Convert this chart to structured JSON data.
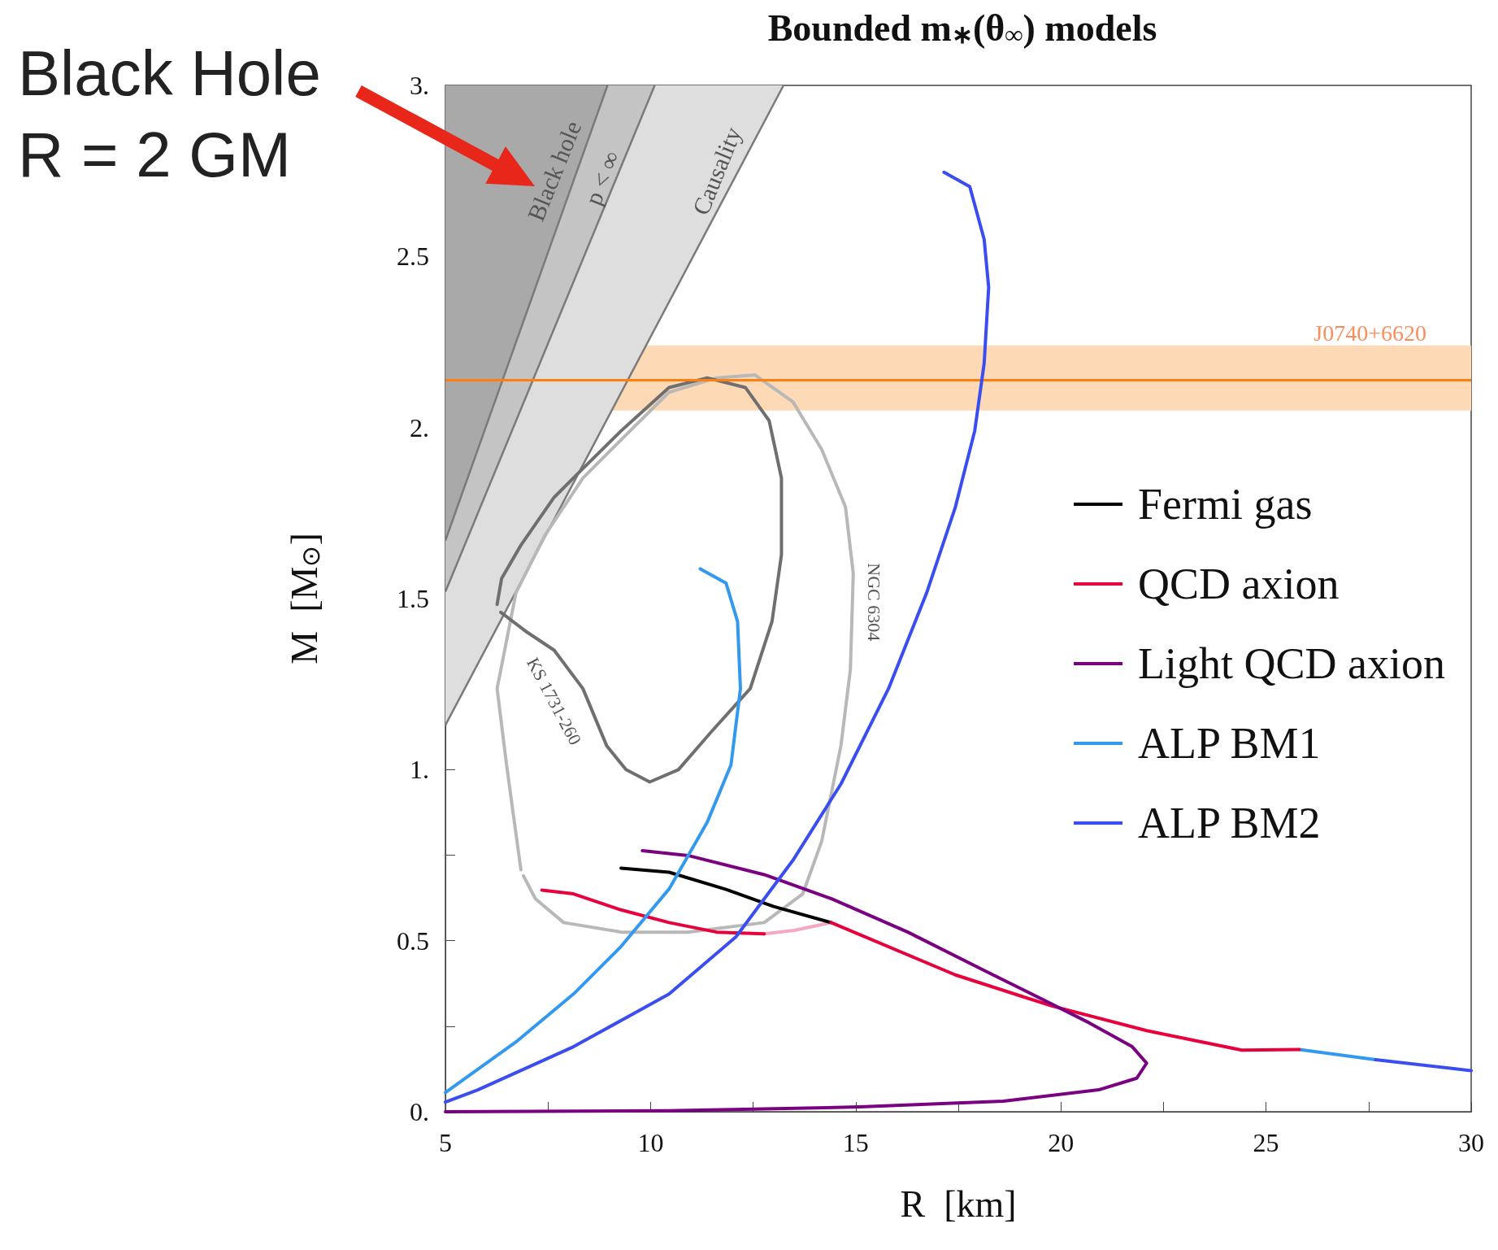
{
  "chart_data": {
    "type": "line",
    "title": "Bounded m$_{∗}$(θ$_{∞}$) models",
    "xlabel": "R  [km]",
    "ylabel": "M  [M$_{⊙}$]",
    "xlim": [
      5,
      30
    ],
    "ylim": [
      0,
      3
    ],
    "xticks": [
      5,
      {
        "value": 7.5,
        "label": null
      },
      10,
      {
        "value": 12.5,
        "label": null
      },
      15,
      {
        "value": 17.5,
        "label": null
      },
      20,
      {
        "value": 22.5,
        "label": null
      },
      25,
      {
        "value": 27.5,
        "label": null
      },
      30
    ],
    "yticks": [
      {
        "value": 0,
        "label": "0."
      },
      {
        "value": 0.25,
        "label": null
      },
      0.5,
      {
        "value": 0.75,
        "label": null
      },
      {
        "value": 1,
        "label": "1."
      },
      {
        "value": 1.25,
        "label": null
      },
      1.5,
      {
        "value": 1.75,
        "label": null
      },
      {
        "value": 2,
        "label": "2."
      },
      {
        "value": 2.25,
        "label": null
      },
      2.5,
      {
        "value": 2.75,
        "label": null
      },
      {
        "value": 3,
        "label": "3."
      }
    ],
    "legend": "right",
    "marker": "none",
    "line_style": "solid",
    "bands": [
      {
        "axis": "y",
        "from": 2.05,
        "to": 2.24,
        "label": "J0740+6620",
        "color": "#fdd9b5"
      }
    ],
    "ref_lines": [
      {
        "axis": "y",
        "value": 2.14,
        "color": "#ff7f0e"
      }
    ],
    "annotations": [
      "Black Hole\nR = 2 GM",
      "Black hole",
      "p < ∞",
      "Causality",
      "KS 1731-260",
      "NGC 6304"
    ],
    "series": [
      {
        "type": "area",
        "color": "#dedede",
        "x": [
          5,
          13.24
        ],
        "values": [
          1.13,
          3
        ]
      },
      {
        "type": "area",
        "color": "#c4c4c4",
        "x": [
          5,
          10.1
        ],
        "values": [
          1.52,
          3
        ]
      },
      {
        "type": "area",
        "color": "#a9a9a9",
        "x": [
          5,
          8.95
        ],
        "values": [
          1.67,
          3
        ]
      },
      {
        "color": "#b8b8b8",
        "x": [
          6.84,
          6.49,
          6.26,
          6.72,
          7.42,
          8.35,
          9.28,
          10.45,
          11.61,
          12.54,
          13.47,
          14.17,
          14.75,
          14.94,
          14.87,
          14.64,
          14.17,
          13.71,
          12.77,
          10.91,
          9.28,
          7.88,
          7.19,
          6.9
        ],
        "values": [
          0.707,
          1.014,
          1.237,
          1.517,
          1.684,
          1.852,
          1.964,
          2.103,
          2.145,
          2.154,
          2.075,
          1.936,
          1.768,
          1.573,
          1.293,
          1.07,
          0.79,
          0.637,
          0.553,
          0.525,
          0.525,
          0.553,
          0.623,
          0.69
        ]
      },
      {
        "color": "#6f6f6f",
        "x": [
          6.26,
          6.37,
          6.84,
          7.65,
          8.35,
          9.28,
          10.45,
          11.38,
          12.31,
          12.89,
          13.19,
          13.19,
          12.96,
          12.43,
          11.49,
          10.68,
          9.98,
          9.4,
          8.93,
          8.35,
          7.65,
          6.95,
          6.35
        ],
        "values": [
          1.483,
          1.559,
          1.656,
          1.796,
          1.88,
          1.99,
          2.117,
          2.145,
          2.117,
          2.02,
          1.852,
          1.628,
          1.433,
          1.237,
          1.112,
          1.0,
          0.964,
          1.0,
          1.07,
          1.237,
          1.349,
          1.405,
          1.46
        ]
      },
      {
        "name": "Fermi gas",
        "color": "#000000",
        "x": [
          9.28,
          10.45,
          11.84,
          13.0,
          14.4
        ],
        "values": [
          0.712,
          0.7,
          0.65,
          0.6,
          0.553
        ]
      },
      {
        "color": "#f5a9c0",
        "x": [
          12.77,
          13.5,
          14.4
        ],
        "values": [
          0.52,
          0.53,
          0.553
        ]
      },
      {
        "name": "QCD axion",
        "color": "#e8003c",
        "x": [
          7.35,
          8.12,
          9.28,
          10.45,
          11.61,
          12.77,
          13.5,
          14.4,
          17.43,
          19.76,
          22.09,
          24.41,
          25.81
        ],
        "values": [
          0.648,
          0.637,
          0.59,
          0.553,
          0.525,
          0.52,
          null,
          0.553,
          0.4,
          0.31,
          0.237,
          0.18,
          0.182
        ]
      },
      {
        "name": "Light QCD axion",
        "color": "#7a0082",
        "x": [
          9.8,
          10.91,
          12.77,
          14.4,
          16.27,
          18.13,
          19.29,
          20.69,
          21.74,
          22.09,
          21.85,
          20.92,
          18.6,
          15.1,
          10.45,
          5
        ],
        "values": [
          0.763,
          0.749,
          0.693,
          0.623,
          0.525,
          0.413,
          0.344,
          0.26,
          0.19,
          0.142,
          0.098,
          0.064,
          0.031,
          0.014,
          0.003,
          0.0
        ]
      },
      {
        "name": "ALP BM1",
        "color": "#3399ee",
        "x": [
          11.21,
          11.84,
          12.12,
          12.19,
          11.96,
          11.38,
          10.45,
          9.28,
          8.12,
          6.72,
          5
        ],
        "values": [
          1.587,
          1.545,
          1.433,
          1.237,
          1.014,
          0.846,
          0.651,
          0.483,
          0.344,
          0.204,
          0.056
        ]
      },
      {
        "color": "#3399ee",
        "x": [
          25.81,
          27.67
        ],
        "values": [
          0.182,
          0.152
        ]
      },
      {
        "name": "ALP BM2",
        "color": "#3a4df0",
        "x": [
          17.15,
          17.78,
          18.13,
          18.24,
          18.13,
          17.9,
          17.43,
          16.73,
          15.8,
          14.64,
          13.47,
          12.08,
          10.45,
          8.12,
          5.79,
          5
        ],
        "values": [
          2.746,
          2.704,
          2.55,
          2.41,
          2.187,
          1.99,
          1.768,
          1.517,
          1.237,
          0.958,
          0.735,
          0.511,
          0.344,
          0.19,
          0.064,
          0.028
        ]
      },
      {
        "color": "#3a4df0",
        "x": [
          27.67,
          30
        ],
        "values": [
          0.152,
          0.12
        ]
      }
    ]
  }
}
